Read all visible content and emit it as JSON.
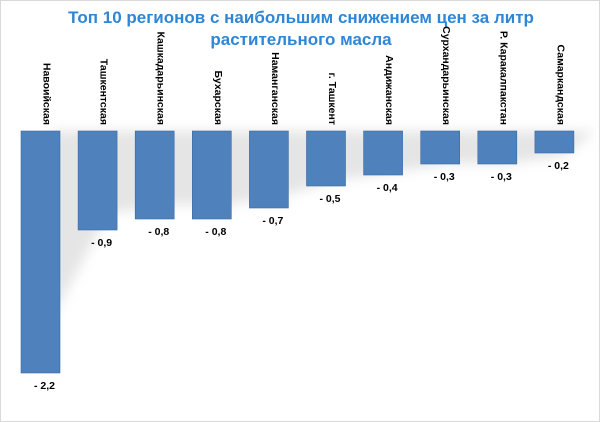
{
  "chart_data": {
    "type": "bar",
    "title_line1": "Топ 10 регионов с наибольшим снижением цен за литр",
    "title_line2": "растительного масла",
    "xlabel": "",
    "ylabel": "",
    "categories": [
      "Навоийская",
      "Ташкентская",
      "Кашкадарьинская",
      "Бухарская",
      "Наманганская",
      "г. Ташкент",
      "Андижанская",
      "Сурхандарьинская",
      "Р. Каракалпакстан",
      "Самаркандская"
    ],
    "values": [
      -2.2,
      -0.9,
      -0.8,
      -0.8,
      -0.7,
      -0.5,
      -0.4,
      -0.3,
      -0.3,
      -0.2
    ],
    "value_labels": [
      "- 2,2",
      "- 0,9",
      "- 0,8",
      "- 0,8",
      "- 0,7",
      "- 0,5",
      "- 0,4",
      "- 0,3",
      "- 0,3",
      "- 0,2"
    ],
    "ylim": [
      -2.2,
      0
    ],
    "grid": false,
    "legend": "none",
    "bar_color": "#4f81bd",
    "bar_edge_color": "#3a6aa0",
    "title_color": "#2e86d6"
  }
}
